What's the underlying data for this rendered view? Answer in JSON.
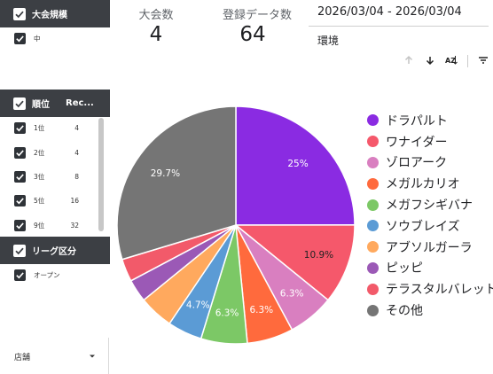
{
  "filters": {
    "tournament_scale": {
      "header": "大会規模",
      "options": [
        {
          "label": "中"
        }
      ]
    },
    "rank": {
      "header": "順位",
      "header_col2": "Rec...",
      "rows": [
        {
          "label": "1位",
          "count": "4"
        },
        {
          "label": "2位",
          "count": "4"
        },
        {
          "label": "3位",
          "count": "8"
        },
        {
          "label": "5位",
          "count": "16"
        },
        {
          "label": "9位",
          "count": "32"
        }
      ]
    },
    "league": {
      "header": "リーグ区分",
      "options": [
        {
          "label": "オープン"
        }
      ]
    },
    "store_select": {
      "label": "店舗"
    }
  },
  "scorecards": [
    {
      "label": "大会数",
      "value": "4"
    },
    {
      "label": "登録データ数",
      "value": "64"
    }
  ],
  "date_range": "2026/03/04 - 2026/03/04",
  "environment_label": "環境",
  "chart_data": {
    "type": "pie",
    "slices": [
      {
        "name": "ドラパルト",
        "value": 25,
        "label": "25%",
        "color": "#8a2be2"
      },
      {
        "name": "ワナイダー",
        "value": 10.9,
        "label": "10.9%",
        "color": "#f5586b"
      },
      {
        "name": "ゾロアーク",
        "value": 6.3,
        "label": "6.3%",
        "color": "#d97fc0"
      },
      {
        "name": "メガルカリオ",
        "value": 6.3,
        "label": "6.3%",
        "color": "#ff6a3d"
      },
      {
        "name": "メガフシギバナ",
        "value": 6.3,
        "label": "6.3%",
        "color": "#7cc866"
      },
      {
        "name": "ソウブレイズ",
        "value": 4.7,
        "label": "4.7%",
        "color": "#5b9bd5"
      },
      {
        "name": "アブソルガーラ",
        "value": 4.7,
        "label": "",
        "color": "#ffa95e"
      },
      {
        "name": "ピッピ",
        "value": 3.1,
        "label": "",
        "color": "#9b59b6"
      },
      {
        "name": "テラスタルバレット",
        "value": 3.1,
        "label": "",
        "color": "#f25a6a"
      },
      {
        "name": "その他",
        "value": 29.7,
        "label": "29.7%",
        "color": "#757575"
      }
    ],
    "legend_position": "right"
  }
}
